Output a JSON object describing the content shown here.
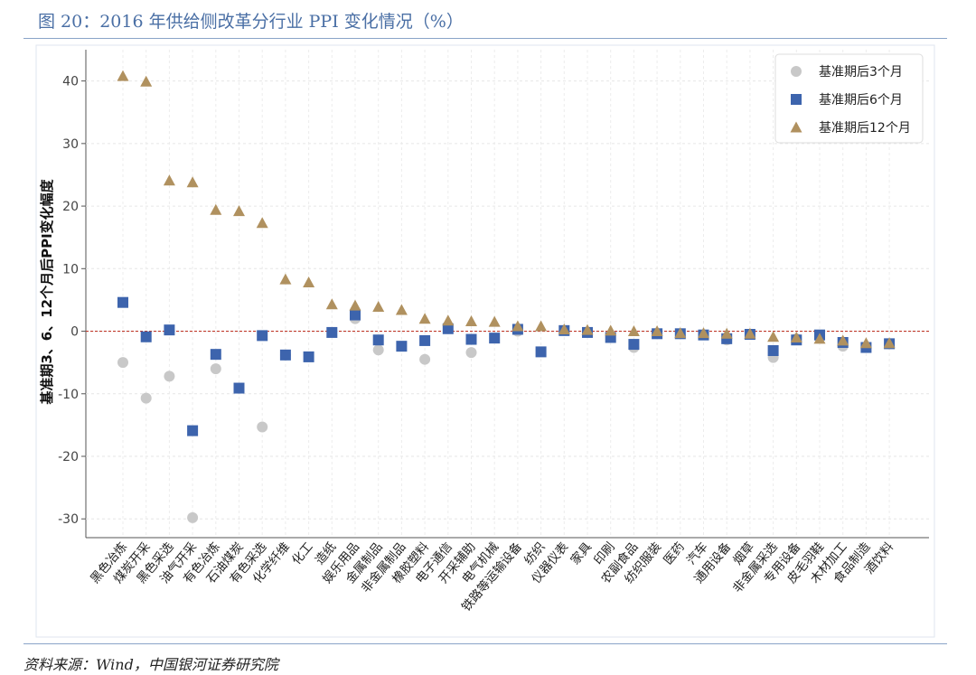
{
  "figure": {
    "title": "图 20：2016 年供给侧改革分行业 PPI 变化情况（%）",
    "source": "资料来源：Wind，中国银河证券研究院"
  },
  "chart_data": {
    "type": "scatter",
    "ylabel": "基准期3、6、12个月后PPI变化幅度",
    "xlabel": "",
    "ylim": [
      -33,
      45
    ],
    "yticks": [
      -30,
      -20,
      -10,
      0,
      10,
      20,
      30,
      40
    ],
    "grid": true,
    "zero_line": {
      "value": 0,
      "color": "#c0392b",
      "style": "dashed"
    },
    "legend_position": "top-right",
    "categories": [
      "黑色冶炼",
      "煤炭开采",
      "黑色采选",
      "油气开采",
      "有色冶炼",
      "石油煤炭",
      "有色采选",
      "化学纤维",
      "化工",
      "造纸",
      "娱乐用品",
      "金属制品",
      "非金属制品",
      "橡胶塑料",
      "电子通信",
      "开采辅助",
      "电气机械",
      "铁路等运输设备",
      "纺织",
      "仪器仪表",
      "家具",
      "印刷",
      "农副食品",
      "纺织服装",
      "医药",
      "汽车",
      "通用设备",
      "烟草",
      "非金属采选",
      "专用设备",
      "皮毛羽鞋",
      "木材加工",
      "食品制造",
      "酒饮料"
    ],
    "series": [
      {
        "name": "基准期后3个月",
        "marker": "circle",
        "color": "#c8c8c8",
        "values": [
          -5,
          -10.7,
          -7.2,
          -29.8,
          -6,
          null,
          -15.3,
          -3.8,
          null,
          null,
          2,
          -3,
          null,
          -4.5,
          null,
          -3.4,
          null,
          0,
          null,
          null,
          null,
          null,
          -2.6,
          null,
          null,
          null,
          -1.4,
          null,
          -4.2,
          -1.2,
          null,
          -2.4,
          -2.6,
          -2
        ]
      },
      {
        "name": "基准期后6个月",
        "marker": "square",
        "color": "#3d64ad",
        "values": [
          4.6,
          -0.9,
          0.2,
          -15.9,
          -3.7,
          -9.1,
          -0.7,
          -3.8,
          -4.1,
          -0.2,
          2.6,
          -1.4,
          -2.4,
          -1.5,
          0.4,
          -1.3,
          -1.1,
          0.3,
          -3.3,
          0.1,
          -0.2,
          -1,
          -2.1,
          -0.4,
          -0.4,
          -0.6,
          -1.2,
          -0.5,
          -3.1,
          -1.4,
          -0.6,
          -1.8,
          -2.6,
          -2
        ]
      },
      {
        "name": "基准期后12个月",
        "marker": "triangle",
        "color": "#b0915f",
        "values": [
          40.8,
          39.9,
          24.1,
          23.8,
          19.4,
          19.2,
          17.3,
          8.3,
          7.8,
          4.3,
          4.1,
          3.9,
          3.4,
          2,
          1.7,
          1.6,
          1.5,
          0.8,
          0.8,
          0.3,
          0.2,
          0.1,
          0,
          0,
          -0.3,
          -0.3,
          -0.4,
          -0.4,
          -0.9,
          -1,
          -1.2,
          -1.5,
          -1.9,
          -1.9
        ]
      }
    ]
  }
}
